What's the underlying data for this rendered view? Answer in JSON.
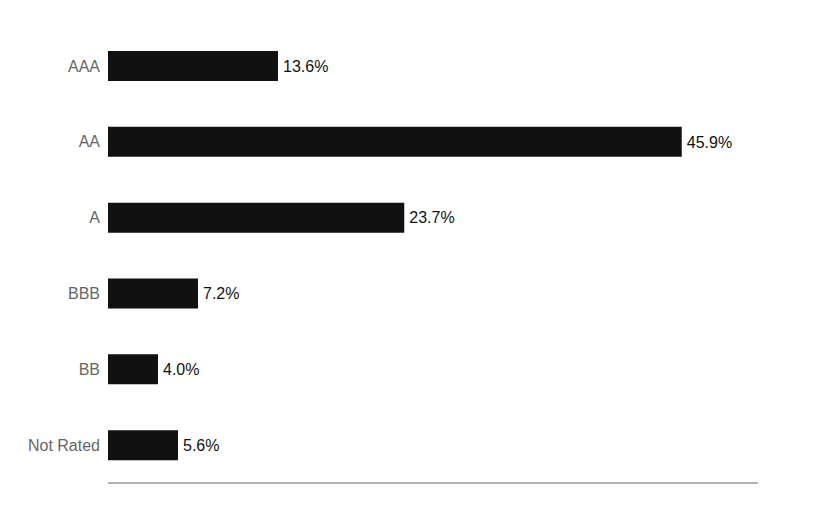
{
  "chart_data": {
    "type": "bar",
    "orientation": "horizontal",
    "categories": [
      "AAA",
      "AA",
      "A",
      "BBB",
      "BB",
      "Not Rated"
    ],
    "values": [
      13.6,
      45.9,
      23.7,
      7.2,
      4.0,
      5.6
    ],
    "value_labels": [
      "13.6%",
      "45.9%",
      "23.7%",
      "7.2%",
      "4.0%",
      "5.6%"
    ],
    "color": "#111111",
    "xlim": [
      0,
      52
    ],
    "data_labels": true,
    "tick_labels": "y",
    "grid": false
  }
}
